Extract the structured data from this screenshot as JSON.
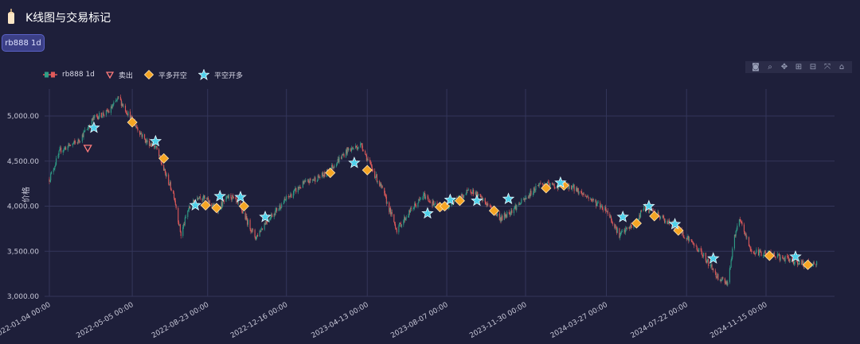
{
  "app": {
    "title": "K线图与交易标记",
    "icon": "candle-icon"
  },
  "tab": {
    "label": "rb888 1d"
  },
  "toolbar": {
    "icons": [
      "camera-icon",
      "zoom-icon",
      "pan-icon",
      "zoom-in-icon",
      "zoom-out-icon",
      "autoscale-icon",
      "home-icon"
    ]
  },
  "legend": [
    {
      "label": "rb888 1d",
      "kind": "candlestick"
    },
    {
      "label": "卖出",
      "kind": "triangle-down",
      "color": "#ff7b7b"
    },
    {
      "label": "平多开空",
      "kind": "diamond",
      "color": "#f5a524"
    },
    {
      "label": "平空开多",
      "kind": "star",
      "color": "#4fd0ea"
    }
  ],
  "colors": {
    "up": "#2f9e87",
    "down": "#e05a5a",
    "grid": "#34365a",
    "axis_text": "#c8c8d8"
  },
  "chart_data": {
    "type": "candlestick",
    "ylabel": "价格",
    "ylim": [
      3000,
      5300
    ],
    "yticks": [
      3000,
      3500,
      4000,
      4500,
      5000
    ],
    "ytick_labels": [
      "3,000.00",
      "3,500.00",
      "4,000.00",
      "4,500.00",
      "5,000.00"
    ],
    "xrange": [
      "2022-01-04",
      "2025-03-01"
    ],
    "xticks": [
      "2022-01-04",
      "2022-05-05",
      "2022-08-23",
      "2022-12-16",
      "2023-04-13",
      "2023-08-07",
      "2023-11-30",
      "2024-03-27",
      "2024-07-22",
      "2024-11-15"
    ],
    "xtick_labels": [
      "2022-01-04 00:00",
      "2022-05-05 00:00",
      "2022-08-23 00:00",
      "2022-12-16 00:00",
      "2023-04-13 00:00",
      "2023-08-07 00:00",
      "2023-11-30 00:00",
      "2024-03-27 00:00",
      "2024-07-22 00:00",
      "2024-11-15 00:00"
    ],
    "price_path": [
      [
        "2022-01-04",
        4300
      ],
      [
        "2022-01-20",
        4620
      ],
      [
        "2022-02-15",
        4720
      ],
      [
        "2022-03-01",
        4870
      ],
      [
        "2022-03-10",
        4980
      ],
      [
        "2022-04-01",
        5050
      ],
      [
        "2022-04-15",
        5200
      ],
      [
        "2022-05-05",
        4950
      ],
      [
        "2022-05-25",
        4720
      ],
      [
        "2022-06-08",
        4660
      ],
      [
        "2022-06-20",
        4400
      ],
      [
        "2022-07-05",
        4120
      ],
      [
        "2022-07-15",
        3680
      ],
      [
        "2022-07-25",
        3950
      ],
      [
        "2022-08-10",
        4120
      ],
      [
        "2022-08-23",
        4060
      ],
      [
        "2022-09-05",
        3960
      ],
      [
        "2022-09-25",
        4120
      ],
      [
        "2022-10-10",
        3980
      ],
      [
        "2022-11-01",
        3650
      ],
      [
        "2022-11-15",
        3820
      ],
      [
        "2022-12-16",
        4080
      ],
      [
        "2023-01-10",
        4250
      ],
      [
        "2023-02-10",
        4350
      ],
      [
        "2023-03-15",
        4620
      ],
      [
        "2023-04-05",
        4680
      ],
      [
        "2023-04-13",
        4520
      ],
      [
        "2023-05-05",
        4180
      ],
      [
        "2023-05-26",
        3740
      ],
      [
        "2023-06-15",
        3950
      ],
      [
        "2023-07-05",
        4120
      ],
      [
        "2023-07-25",
        3980
      ],
      [
        "2023-08-07",
        4000
      ],
      [
        "2023-08-20",
        4070
      ],
      [
        "2023-09-12",
        4180
      ],
      [
        "2023-10-05",
        4020
      ],
      [
        "2023-10-25",
        3860
      ],
      [
        "2023-11-30",
        4080
      ],
      [
        "2023-12-20",
        4250
      ],
      [
        "2024-01-15",
        4220
      ],
      [
        "2024-02-05",
        4220
      ],
      [
        "2024-02-25",
        4120
      ],
      [
        "2024-03-27",
        3960
      ],
      [
        "2024-04-15",
        3680
      ],
      [
        "2024-05-10",
        3820
      ],
      [
        "2024-05-20",
        3990
      ],
      [
        "2024-06-10",
        3900
      ],
      [
        "2024-07-01",
        3790
      ],
      [
        "2024-07-22",
        3660
      ],
      [
        "2024-08-15",
        3460
      ],
      [
        "2024-09-05",
        3220
      ],
      [
        "2024-09-20",
        3150
      ],
      [
        "2024-10-01",
        3700
      ],
      [
        "2024-10-08",
        3840
      ],
      [
        "2024-10-25",
        3490
      ],
      [
        "2024-11-15",
        3480
      ],
      [
        "2024-12-10",
        3420
      ],
      [
        "2025-01-10",
        3360
      ],
      [
        "2025-01-28",
        3360
      ]
    ],
    "markers": [
      {
        "type": "sell",
        "date": "2022-03-01",
        "price": 4640
      },
      {
        "type": "close-long-open-short",
        "date": "2022-05-05",
        "price": 4930
      },
      {
        "type": "close-long-open-short",
        "date": "2022-06-20",
        "price": 4530
      },
      {
        "type": "close-long-open-short",
        "date": "2022-08-20",
        "price": 4010
      },
      {
        "type": "close-long-open-short",
        "date": "2022-09-05",
        "price": 3980
      },
      {
        "type": "close-long-open-short",
        "date": "2022-10-15",
        "price": 4000
      },
      {
        "type": "close-long-open-short",
        "date": "2023-02-18",
        "price": 4370
      },
      {
        "type": "close-long-open-short",
        "date": "2023-04-13",
        "price": 4400
      },
      {
        "type": "close-long-open-short",
        "date": "2023-07-28",
        "price": 3990
      },
      {
        "type": "close-long-open-short",
        "date": "2023-08-04",
        "price": 4000
      },
      {
        "type": "close-long-open-short",
        "date": "2023-08-26",
        "price": 4060
      },
      {
        "type": "close-long-open-short",
        "date": "2023-10-15",
        "price": 3950
      },
      {
        "type": "close-long-open-short",
        "date": "2023-12-30",
        "price": 4200
      },
      {
        "type": "close-long-open-short",
        "date": "2024-01-25",
        "price": 4230
      },
      {
        "type": "close-long-open-short",
        "date": "2024-05-10",
        "price": 3810
      },
      {
        "type": "close-long-open-short",
        "date": "2024-06-05",
        "price": 3890
      },
      {
        "type": "close-long-open-short",
        "date": "2024-07-10",
        "price": 3730
      },
      {
        "type": "close-long-open-short",
        "date": "2024-11-20",
        "price": 3450
      },
      {
        "type": "close-long-open-short",
        "date": "2025-01-15",
        "price": 3350
      },
      {
        "type": "close-short-open-long",
        "date": "2022-03-10",
        "price": 4870
      },
      {
        "type": "close-short-open-long",
        "date": "2022-06-08",
        "price": 4720
      },
      {
        "type": "close-short-open-long",
        "date": "2022-08-05",
        "price": 4010
      },
      {
        "type": "close-short-open-long",
        "date": "2022-09-10",
        "price": 4110
      },
      {
        "type": "close-short-open-long",
        "date": "2022-10-10",
        "price": 4100
      },
      {
        "type": "close-short-open-long",
        "date": "2022-11-15",
        "price": 3880
      },
      {
        "type": "close-short-open-long",
        "date": "2023-03-25",
        "price": 4480
      },
      {
        "type": "close-short-open-long",
        "date": "2023-07-10",
        "price": 3920
      },
      {
        "type": "close-short-open-long",
        "date": "2023-08-12",
        "price": 4070
      },
      {
        "type": "close-short-open-long",
        "date": "2023-09-20",
        "price": 4060
      },
      {
        "type": "close-short-open-long",
        "date": "2023-11-05",
        "price": 4080
      },
      {
        "type": "close-short-open-long",
        "date": "2024-01-20",
        "price": 4260
      },
      {
        "type": "close-short-open-long",
        "date": "2024-04-20",
        "price": 3880
      },
      {
        "type": "close-short-open-long",
        "date": "2024-05-28",
        "price": 4000
      },
      {
        "type": "close-short-open-long",
        "date": "2024-07-05",
        "price": 3800
      },
      {
        "type": "close-short-open-long",
        "date": "2024-08-30",
        "price": 3420
      },
      {
        "type": "close-short-open-long",
        "date": "2024-12-28",
        "price": 3440
      }
    ]
  }
}
